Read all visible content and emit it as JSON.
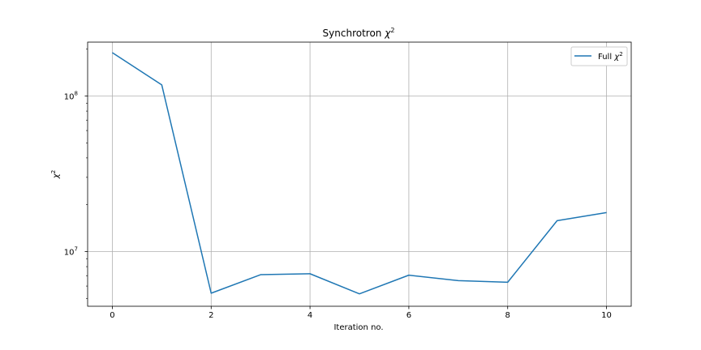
{
  "chart_data": {
    "type": "line",
    "title_text": "Synchrotron ",
    "title_symbol": "χ",
    "title_sup": "2",
    "xlabel": "Iteration no.",
    "ylabel_symbol": "χ",
    "ylabel_sup": "2",
    "x": [
      0,
      1,
      2,
      3,
      4,
      5,
      6,
      7,
      8,
      9,
      10
    ],
    "series": [
      {
        "name_text": "Full ",
        "name_symbol": "χ",
        "name_sup": "2",
        "color": "#1f77b4",
        "values": [
          190000000,
          118000000,
          5400000,
          7100000,
          7200000,
          5350000,
          7050000,
          6500000,
          6350000,
          15800000,
          17800000
        ]
      }
    ],
    "xlim": [
      -0.5,
      10.5
    ],
    "ylim": [
      4450000,
      222000000
    ],
    "y_scale": "log",
    "x_ticks": [
      0,
      2,
      4,
      6,
      8,
      10
    ],
    "x_tick_labels": [
      "0",
      "2",
      "4",
      "6",
      "8",
      "10"
    ],
    "y_major_ticks": [
      10000000,
      100000000
    ],
    "y_major_tick_base": [
      "10",
      "10"
    ],
    "y_major_tick_exp": [
      "7",
      "8"
    ],
    "grid": true,
    "legend_position": "top-right"
  }
}
